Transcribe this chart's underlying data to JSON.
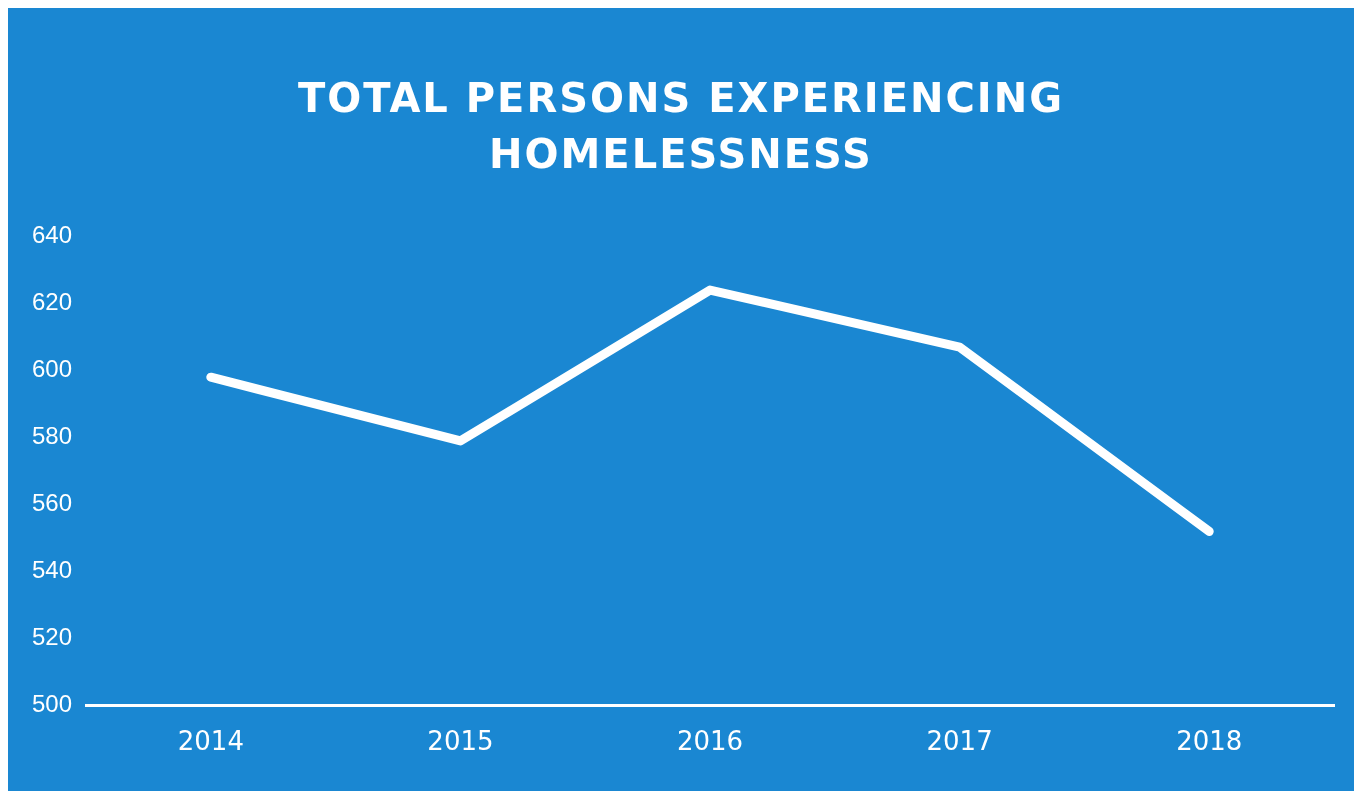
{
  "chart_data": {
    "type": "line",
    "title": "TOTAL PERSONS EXPERIENCING HOMELESSNESS",
    "categories": [
      "2014",
      "2015",
      "2016",
      "2017",
      "2018"
    ],
    "series": [
      {
        "color": "#ffffff",
        "values": [
          598,
          579,
          624,
          607,
          552
        ]
      }
    ],
    "ylim": [
      500,
      640
    ],
    "yticks": [
      500,
      520,
      540,
      560,
      580,
      600,
      620,
      640
    ],
    "grid": false,
    "legend": false,
    "marker": "none",
    "line_style": "solid"
  }
}
